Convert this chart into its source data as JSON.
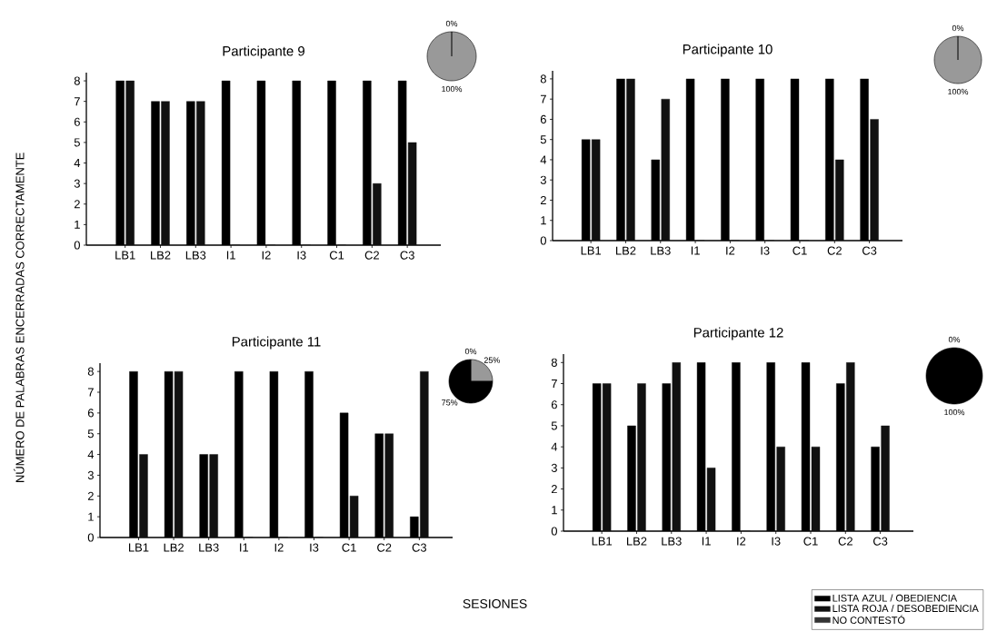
{
  "chart_data": [
    {
      "type": "bar",
      "title": "Participante 9",
      "ylabel": "NÚMERO DE PALABRAS ENCERRADAS CORRECTAMENTE",
      "categories": [
        "LB1",
        "LB2",
        "LB3",
        "I1",
        "I2",
        "I3",
        "C1",
        "C2",
        "C3"
      ],
      "ylim": [
        0,
        8.4
      ],
      "yticks": [
        0,
        1,
        2,
        3,
        4,
        5,
        6,
        7,
        8
      ],
      "series": [
        {
          "color": "#000000",
          "values": [
            8,
            7,
            7,
            8,
            8,
            8,
            8,
            8,
            8
          ]
        },
        {
          "color": "#111111",
          "values": [
            8,
            7,
            7,
            0,
            0,
            0,
            0,
            3,
            5
          ]
        }
      ]
    },
    {
      "type": "pie",
      "categories": [
        null,
        null
      ],
      "values": [
        0,
        100
      ],
      "colors": [
        "#000000",
        "#999999"
      ],
      "value_labels": [
        "0%",
        "100%"
      ]
    },
    {
      "type": "bar",
      "title": "Participante 10",
      "categories": [
        "LB1",
        "LB2",
        "LB3",
        "I1",
        "I2",
        "I3",
        "C1",
        "C2",
        "C3"
      ],
      "ylim": [
        0,
        8.4
      ],
      "yticks": [
        0,
        1,
        2,
        3,
        4,
        5,
        6,
        7,
        8
      ],
      "series": [
        {
          "color": "#000000",
          "values": [
            5,
            8,
            4,
            8,
            8,
            8,
            8,
            8,
            8
          ]
        },
        {
          "color": "#111111",
          "values": [
            5,
            8,
            7,
            0,
            0,
            0,
            0,
            4,
            6
          ]
        }
      ]
    },
    {
      "type": "pie",
      "categories": [
        null,
        null
      ],
      "values": [
        0,
        100
      ],
      "colors": [
        "#000000",
        "#999999"
      ],
      "value_labels": [
        "0%",
        "100%"
      ]
    },
    {
      "type": "bar",
      "title": "Participante 11",
      "xlabel": "SESIONES",
      "categories": [
        "LB1",
        "LB2",
        "LB3",
        "I1",
        "I2",
        "I3",
        "C1",
        "C2",
        "C3"
      ],
      "ylim": [
        0,
        8.4
      ],
      "yticks": [
        0,
        1,
        2,
        3,
        4,
        5,
        6,
        7,
        8
      ],
      "series": [
        {
          "color": "#000000",
          "values": [
            8,
            8,
            4,
            8,
            8,
            8,
            6,
            5,
            1
          ]
        },
        {
          "color": "#111111",
          "values": [
            4,
            8,
            4,
            0,
            0,
            0,
            2,
            5,
            8
          ]
        }
      ]
    },
    {
      "type": "pie",
      "categories": [
        null,
        null,
        null
      ],
      "values": [
        0,
        25,
        75
      ],
      "colors": [
        "#cccccc",
        "#999999",
        "#000000"
      ],
      "value_labels": [
        "0%",
        "25%",
        "75%"
      ]
    },
    {
      "type": "bar",
      "title": "Participante 12",
      "legend": "bottom right",
      "categories": [
        "LB1",
        "LB2",
        "LB3",
        "I1",
        "I2",
        "I3",
        "C1",
        "C2",
        "C3"
      ],
      "ylim": [
        0,
        8.4
      ],
      "yticks": [
        0,
        1,
        2,
        3,
        4,
        5,
        6,
        7,
        8
      ],
      "series": [
        {
          "name": "LISTA AZUL / OBEDIENCIA",
          "color": "#000000",
          "values": [
            7,
            5,
            7,
            8,
            8,
            8,
            8,
            7,
            4
          ]
        },
        {
          "name": "LISTA ROJA / DESOBEDIENCIA",
          "color": "#111111",
          "values": [
            7,
            7,
            8,
            3,
            0,
            4,
            4,
            8,
            5
          ]
        },
        {
          "name": "NO CONTESTÓ",
          "color": "#333333",
          "values": [
            null,
            null,
            null,
            null,
            null,
            null,
            null,
            null,
            null
          ]
        }
      ]
    },
    {
      "type": "pie",
      "categories": [
        null,
        null
      ],
      "values": [
        0,
        100
      ],
      "colors": [
        "#999999",
        "#000000"
      ],
      "value_labels": [
        "0%",
        "100%"
      ]
    }
  ]
}
